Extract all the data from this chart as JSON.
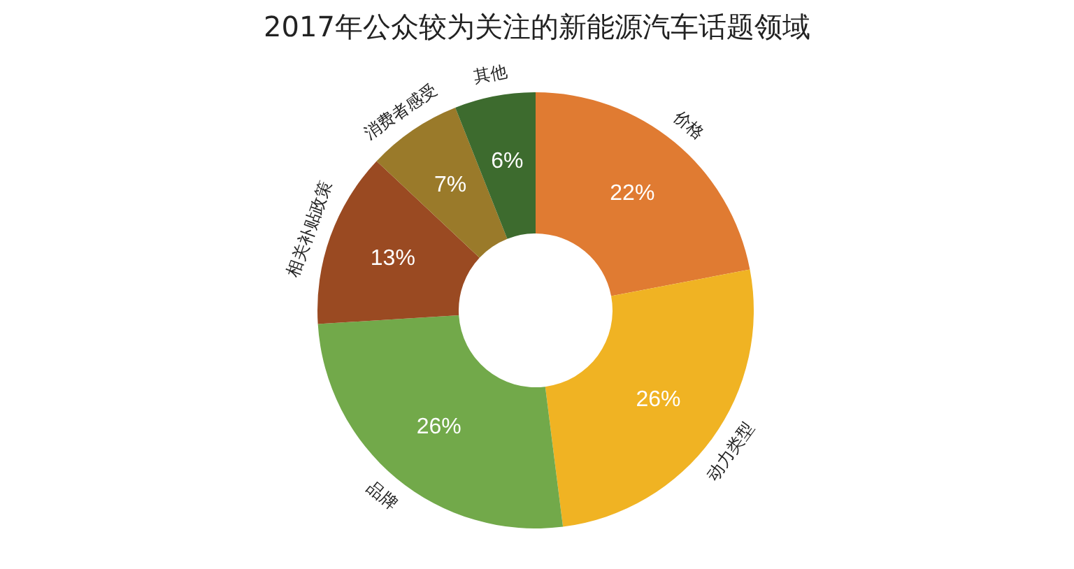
{
  "chart_data": {
    "type": "donut",
    "title": "2017年公众较为关注的新能源汽车话题领域",
    "categories": [
      "价格",
      "动力类型",
      "品牌",
      "相关补贴政策",
      "消费者感受",
      "其他"
    ],
    "values": [
      22,
      26,
      26,
      13,
      7,
      6
    ],
    "value_labels": [
      "22%",
      "26%",
      "26%",
      "13%",
      "7%",
      "6%"
    ],
    "colors": [
      "#e07b32",
      "#f0b323",
      "#72a94a",
      "#9a4a22",
      "#9a7a2a",
      "#3d6b2e"
    ],
    "legend": false
  }
}
